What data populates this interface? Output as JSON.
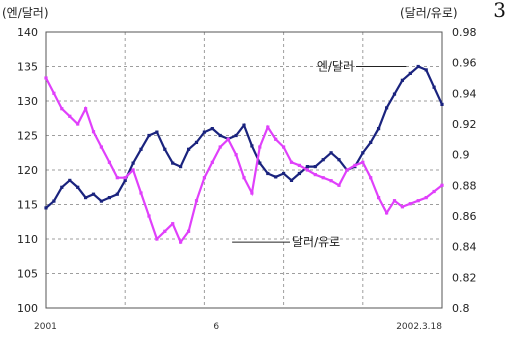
{
  "corner_mark": "3",
  "chart_data": {
    "type": "line",
    "left_axis_label": "(엔/달러)",
    "right_axis_label": "(달러/유로)",
    "left_ylim": [
      100,
      140
    ],
    "left_ticks": [
      "140",
      "135",
      "130",
      "125",
      "120",
      "115",
      "110",
      "105",
      "100"
    ],
    "right_ylim": [
      0.8,
      0.98
    ],
    "right_ticks": [
      "0.98",
      "0.96",
      "0.94",
      "0.92",
      "0.9",
      "0.88",
      "0.86",
      "0.84",
      "0.82",
      "0.8"
    ],
    "x_tick_labels": [
      "2001",
      "6",
      "2002.3.18"
    ],
    "x_tick_positions": [
      0,
      0.43,
      1
    ],
    "grid": "dashed",
    "series": [
      {
        "name": "엔/달러",
        "axis": "left",
        "color": "#1a237e",
        "x": [
          0,
          0.02,
          0.04,
          0.06,
          0.08,
          0.1,
          0.12,
          0.14,
          0.16,
          0.18,
          0.2,
          0.22,
          0.24,
          0.26,
          0.28,
          0.3,
          0.32,
          0.34,
          0.36,
          0.38,
          0.4,
          0.42,
          0.44,
          0.46,
          0.48,
          0.5,
          0.52,
          0.54,
          0.56,
          0.58,
          0.6,
          0.62,
          0.64,
          0.66,
          0.68,
          0.7,
          0.72,
          0.74,
          0.76,
          0.78,
          0.8,
          0.82,
          0.84,
          0.86,
          0.88,
          0.9,
          0.92,
          0.94,
          0.96,
          0.98,
          1.0
        ],
        "values": [
          114.5,
          115.5,
          117.5,
          118.5,
          117.5,
          116,
          116.5,
          115.5,
          116,
          116.5,
          118.5,
          121,
          123,
          125,
          125.5,
          123,
          121,
          120.5,
          123,
          124,
          125.5,
          126,
          125,
          124.5,
          125,
          126.5,
          123.5,
          121,
          119.5,
          119,
          119.5,
          118.5,
          119.5,
          120.5,
          120.5,
          121.5,
          122.5,
          121.5,
          120,
          120.5,
          122.5,
          124,
          126,
          129,
          131,
          133,
          134,
          135,
          134.5,
          132,
          129.5
        ]
      },
      {
        "name": "달러/유로",
        "axis": "right",
        "color": "#e040fb",
        "x": [
          0,
          0.02,
          0.04,
          0.06,
          0.08,
          0.1,
          0.12,
          0.14,
          0.16,
          0.18,
          0.2,
          0.22,
          0.24,
          0.26,
          0.28,
          0.3,
          0.32,
          0.34,
          0.36,
          0.38,
          0.4,
          0.42,
          0.44,
          0.46,
          0.48,
          0.5,
          0.52,
          0.54,
          0.56,
          0.58,
          0.6,
          0.62,
          0.64,
          0.66,
          0.68,
          0.7,
          0.72,
          0.74,
          0.76,
          0.78,
          0.8,
          0.82,
          0.84,
          0.86,
          0.88,
          0.9,
          0.92,
          0.94,
          0.96,
          0.98,
          1.0
        ],
        "values": [
          0.95,
          0.94,
          0.93,
          0.925,
          0.92,
          0.93,
          0.915,
          0.905,
          0.895,
          0.885,
          0.885,
          0.89,
          0.875,
          0.86,
          0.845,
          0.85,
          0.855,
          0.843,
          0.85,
          0.87,
          0.885,
          0.895,
          0.905,
          0.91,
          0.9,
          0.885,
          0.875,
          0.905,
          0.918,
          0.91,
          0.905,
          0.895,
          0.893,
          0.89,
          0.887,
          0.885,
          0.883,
          0.88,
          0.89,
          0.893,
          0.895,
          0.885,
          0.872,
          0.862,
          0.87,
          0.866,
          0.868,
          0.87,
          0.872,
          0.876,
          0.88
        ]
      }
    ],
    "annotations": [
      {
        "text": "엔/달러",
        "series": "엔/달러"
      },
      {
        "text": "달러/유로",
        "series": "달러/유로"
      }
    ]
  }
}
